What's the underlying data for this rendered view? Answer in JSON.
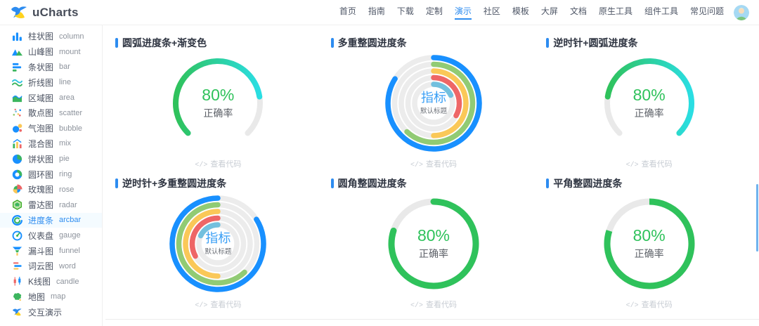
{
  "accent_color": "#2d8cf0",
  "header": {
    "logo_text": "uCharts",
    "nav_items": [
      {
        "key": "home",
        "label": "首页",
        "active": false
      },
      {
        "key": "guide",
        "label": "指南",
        "active": false
      },
      {
        "key": "download",
        "label": "下载",
        "active": false
      },
      {
        "key": "custom",
        "label": "定制",
        "active": false
      },
      {
        "key": "demo",
        "label": "演示",
        "active": true
      },
      {
        "key": "community",
        "label": "社区",
        "active": false
      },
      {
        "key": "template",
        "label": "模板",
        "active": false
      },
      {
        "key": "bigscreen",
        "label": "大屏",
        "active": false
      },
      {
        "key": "docs",
        "label": "文档",
        "active": false
      },
      {
        "key": "native-tools",
        "label": "原生工具",
        "active": false
      },
      {
        "key": "component-tools",
        "label": "组件工具",
        "active": false
      },
      {
        "key": "faq",
        "label": "常见问题",
        "active": false
      }
    ]
  },
  "sidebar": {
    "items": [
      {
        "key": "column",
        "zh": "柱状图",
        "en": "column",
        "icon": "column-chart-icon",
        "active": false
      },
      {
        "key": "mount",
        "zh": "山峰图",
        "en": "mount",
        "icon": "mount-chart-icon",
        "active": false
      },
      {
        "key": "bar",
        "zh": "条状图",
        "en": "bar",
        "icon": "bar-chart-icon",
        "active": false
      },
      {
        "key": "line",
        "zh": "折线图",
        "en": "line",
        "icon": "line-chart-icon",
        "active": false
      },
      {
        "key": "area",
        "zh": "区域图",
        "en": "area",
        "icon": "area-chart-icon",
        "active": false
      },
      {
        "key": "scatter",
        "zh": "散点图",
        "en": "scatter",
        "icon": "scatter-chart-icon",
        "active": false
      },
      {
        "key": "bubble",
        "zh": "气泡图",
        "en": "bubble",
        "icon": "bubble-chart-icon",
        "active": false
      },
      {
        "key": "mix",
        "zh": "混合图",
        "en": "mix",
        "icon": "mix-chart-icon",
        "active": false
      },
      {
        "key": "pie",
        "zh": "饼状图",
        "en": "pie",
        "icon": "pie-chart-icon",
        "active": false
      },
      {
        "key": "ring",
        "zh": "圆环图",
        "en": "ring",
        "icon": "ring-chart-icon",
        "active": false
      },
      {
        "key": "rose",
        "zh": "玫瑰图",
        "en": "rose",
        "icon": "rose-chart-icon",
        "active": false
      },
      {
        "key": "radar",
        "zh": "雷达图",
        "en": "radar",
        "icon": "radar-chart-icon",
        "active": false
      },
      {
        "key": "arcbar",
        "zh": "进度条",
        "en": "arcbar",
        "icon": "arcbar-chart-icon",
        "active": true
      },
      {
        "key": "gauge",
        "zh": "仪表盘",
        "en": "gauge",
        "icon": "gauge-chart-icon",
        "active": false
      },
      {
        "key": "funnel",
        "zh": "漏斗图",
        "en": "funnel",
        "icon": "funnel-chart-icon",
        "active": false
      },
      {
        "key": "word",
        "zh": "词云图",
        "en": "word",
        "icon": "word-chart-icon",
        "active": false
      },
      {
        "key": "candle",
        "zh": "K线图",
        "en": "candle",
        "icon": "candle-chart-icon",
        "active": false
      },
      {
        "key": "map",
        "zh": "地图",
        "en": "map",
        "icon": "map-chart-icon",
        "active": false
      },
      {
        "key": "interactive-demo",
        "zh": "交互演示",
        "en": "",
        "icon": "interactive-demo-icon",
        "active": false
      }
    ]
  },
  "shared": {
    "view_code_label": "查看代码",
    "view_code_icon": "</>"
  },
  "panels": [
    {
      "key": "arcbar-gradient",
      "title": "圆弧进度条+渐变色",
      "chart": {
        "type": "arcbar",
        "direction": "cw",
        "percent": 0.8,
        "total_degrees": 270,
        "colors": [
          "#2fc25b",
          "#2adee3"
        ],
        "track_color": "#e9e9e9",
        "center_title": "80%",
        "center_subtitle": "正确率",
        "center_title_color": "#2fc25b",
        "center_subtitle_color": "#5d6168"
      }
    },
    {
      "key": "multi-circle",
      "title": "多重整圆进度条",
      "chart": {
        "type": "multi-arcbar",
        "direction": "cw",
        "track_color": "#ececec",
        "series": [
          {
            "color": "#1890FF",
            "percent": 0.84
          },
          {
            "color": "#91CB74",
            "percent": 0.62
          },
          {
            "color": "#FAC858",
            "percent": 0.5
          },
          {
            "color": "#EE6666",
            "percent": 0.33
          },
          {
            "color": "#73C0DE",
            "percent": 0.18
          }
        ],
        "center_title": "指标",
        "center_subtitle": "默认标题",
        "center_title_color": "#3a9ff5",
        "center_subtitle_color": "#6a6e75"
      }
    },
    {
      "key": "ccw-arcbar",
      "title": "逆时针+圆弧进度条",
      "chart": {
        "type": "arcbar",
        "direction": "ccw",
        "percent": 0.8,
        "total_degrees": 270,
        "colors": [
          "#2fc25b",
          "#2adee3"
        ],
        "track_color": "#e9e9e9",
        "center_title": "80%",
        "center_subtitle": "正确率",
        "center_title_color": "#2fc25b",
        "center_subtitle_color": "#5d6168"
      }
    },
    {
      "key": "ccw-multi-circle",
      "title": "逆时针+多重整圆进度条",
      "chart": {
        "type": "multi-arcbar",
        "direction": "ccw",
        "track_color": "#ececec",
        "series": [
          {
            "color": "#1890FF",
            "percent": 0.84
          },
          {
            "color": "#91CB74",
            "percent": 0.62
          },
          {
            "color": "#FAC858",
            "percent": 0.5
          },
          {
            "color": "#EE6666",
            "percent": 0.33
          },
          {
            "color": "#73C0DE",
            "percent": 0.18
          }
        ],
        "center_title": "指标",
        "center_subtitle": "默认标题",
        "center_title_color": "#3a9ff5",
        "center_subtitle_color": "#6a6e75"
      }
    },
    {
      "key": "rounded-circle",
      "title": "圆角整圆进度条",
      "chart": {
        "type": "circle",
        "direction": "cw",
        "percent": 0.8,
        "cap": "round",
        "color": "#2fc25b",
        "track_color": "#e9e9e9",
        "center_title": "80%",
        "center_subtitle": "正确率",
        "center_title_color": "#2fc25b",
        "center_subtitle_color": "#5d6168"
      }
    },
    {
      "key": "flat-circle",
      "title": "平角整圆进度条",
      "chart": {
        "type": "circle",
        "direction": "cw",
        "percent": 0.8,
        "cap": "butt",
        "color": "#2fc25b",
        "track_color": "#e9e9e9",
        "center_title": "80%",
        "center_subtitle": "正确率",
        "center_title_color": "#2fc25b",
        "center_subtitle_color": "#5d6168"
      }
    }
  ]
}
